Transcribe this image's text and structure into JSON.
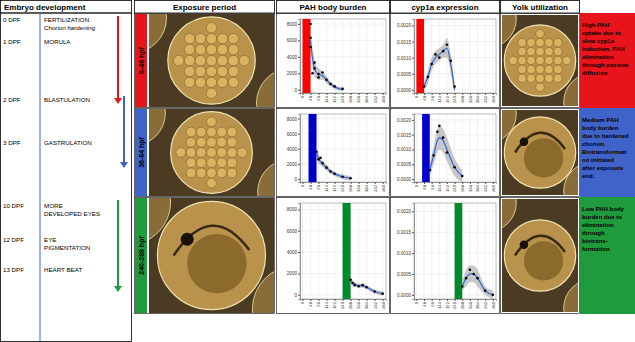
{
  "headers": [
    "Embryo development",
    "Exposure period",
    "PAH body burden",
    "cyp1a expression",
    "Yolk utilization"
  ],
  "timeline": [
    {
      "day": "0 DPF",
      "lines": [
        "FERTILIZATION",
        "Chorion hardening"
      ]
    },
    {
      "day": "1 DPF",
      "lines": [
        "MORULA"
      ]
    },
    {
      "day": "2 DPF",
      "lines": [
        "BLASTULATION"
      ]
    },
    {
      "day": "3 DPF",
      "lines": [
        "GASTRULATION"
      ]
    },
    {
      "day": "10 DPF",
      "lines": [
        "MORE",
        "DEVELOPED EYES"
      ]
    },
    {
      "day": "12 DPF",
      "lines": [
        "EYE",
        "PIGMENTATION"
      ]
    },
    {
      "day": "13 DPF",
      "lines": [
        "HEART BEAT"
      ]
    }
  ],
  "rows": [
    {
      "period": "0-48 hpf",
      "color": "#e8141b",
      "summary": [
        "High PAH",
        "uptake due to",
        "slow cyp1a",
        "induction. PAH",
        "elimination",
        "through passive",
        "diffusion"
      ]
    },
    {
      "period": "36-84 hpf",
      "color": "#3f63c8",
      "summary": [
        "Medium PAH",
        "body burden",
        "due to hardened",
        "chorion.",
        "Biotransformati",
        "on initiated",
        "after exposure",
        "end."
      ]
    },
    {
      "period": "240-288 hpf",
      "color": "#1f9a3c",
      "summary": [
        "Low PAH body",
        "burden due to",
        "elimination",
        "through",
        "biotrans-",
        "formation"
      ]
    }
  ],
  "chart_data": [
    {
      "type": "scatter",
      "color": "#ff0000",
      "exposure": [
        0,
        48
      ],
      "grid": true,
      "xlim": [
        -15,
        500
      ],
      "ylim": [
        -400,
        8600
      ],
      "xticks": [
        0,
        48,
        96,
        144,
        192,
        240,
        288,
        336,
        384,
        432,
        480
      ],
      "yticks": [
        0,
        2000,
        4000,
        6000,
        8000
      ],
      "series": [
        {
          "type": "line",
          "color": "#2a5fd8",
          "x": [
            48,
            60,
            72,
            84,
            96,
            108,
            120,
            144,
            168,
            192,
            216,
            240
          ],
          "values": [
            6000,
            3800,
            2600,
            2100,
            1900,
            1800,
            1700,
            1200,
            700,
            350,
            150,
            50
          ],
          "lower": [
            4800,
            2600,
            1600,
            1300,
            1200,
            1200,
            1200,
            800,
            400,
            100,
            -100,
            -200
          ],
          "upper": [
            7200,
            5000,
            3600,
            2900,
            2600,
            2400,
            2200,
            1600,
            1000,
            600,
            400,
            300
          ]
        },
        {
          "type": "scatter",
          "color": "#000000",
          "x": [
            48,
            48,
            48,
            60,
            72,
            72,
            96,
            96,
            120,
            144,
            168,
            192,
            240
          ],
          "values": [
            6300,
            8000,
            5200,
            2000,
            2600,
            3300,
            1500,
            1900,
            2100,
            1200,
            700,
            400,
            100
          ]
        }
      ]
    },
    {
      "type": "scatter",
      "color": "#ff0000",
      "exposure": [
        0,
        48
      ],
      "grid": true,
      "xlim": [
        -15,
        500
      ],
      "ylim": [
        -0.0001,
        0.0022
      ],
      "xticks": [
        0,
        48,
        96,
        144,
        192,
        240,
        288,
        336,
        384,
        432,
        480
      ],
      "yticks": [
        {
          "value": 0,
          "label": "0.0000"
        },
        {
          "value": 0.0005,
          "label": "0.0005"
        },
        {
          "value": 0.001,
          "label": "0.0010"
        },
        {
          "value": 0.0015,
          "label": "0.0015"
        },
        {
          "value": 0.002,
          "label": "0.0020"
        }
      ],
      "series": [
        {
          "type": "line",
          "color": "#2a5fd8",
          "x": [
            48,
            72,
            96,
            120,
            144,
            168,
            192,
            216,
            240
          ],
          "values": [
            0.0001,
            0.0004,
            0.0008,
            0.001,
            0.0011,
            0.0012,
            0.0013,
            0.0008,
            0.0
          ],
          "lower": [
            0.0,
            0.0002,
            0.0006,
            0.0008,
            0.0009,
            0.001,
            0.001,
            0.0005,
            -0.0002
          ],
          "upper": [
            0.0002,
            0.0006,
            0.001,
            0.0012,
            0.0013,
            0.0014,
            0.0016,
            0.0011,
            0.0002
          ]
        },
        {
          "type": "scatter",
          "color": "#000000",
          "x": [
            48,
            72,
            96,
            120,
            144,
            168,
            192,
            216,
            240
          ],
          "values": [
            0.0001,
            0.0004,
            0.0008,
            0.0011,
            0.001,
            0.0012,
            0.0014,
            0.0009,
            0.0001
          ]
        }
      ]
    },
    {
      "type": "scatter",
      "color": "#0000cc",
      "exposure": [
        36,
        84
      ],
      "grid": true,
      "xlim": [
        -15,
        500
      ],
      "ylim": [
        -400,
        8600
      ],
      "xticks": [
        0,
        48,
        96,
        144,
        192,
        240,
        288,
        336,
        384,
        432,
        480
      ],
      "yticks": [
        0,
        2000,
        4000,
        6000,
        8000
      ],
      "series": [
        {
          "type": "line",
          "color": "#2a5fd8",
          "x": [
            84,
            96,
            120,
            144,
            168,
            192,
            240,
            288
          ],
          "values": [
            3400,
            2700,
            2000,
            1500,
            1000,
            700,
            300,
            100
          ],
          "lower": [
            2600,
            2100,
            1600,
            1100,
            700,
            400,
            0,
            -200
          ],
          "upper": [
            4200,
            3300,
            2400,
            1900,
            1300,
            1000,
            600,
            400
          ]
        },
        {
          "type": "scatter",
          "color": "#000000",
          "x": [
            84,
            96,
            108,
            120,
            144,
            168,
            192,
            240,
            288
          ],
          "values": [
            3600,
            2600,
            2800,
            2100,
            1500,
            1000,
            700,
            300,
            100
          ]
        }
      ]
    },
    {
      "type": "scatter",
      "color": "#0000cc",
      "exposure": [
        36,
        84
      ],
      "grid": true,
      "xlim": [
        -15,
        500
      ],
      "ylim": [
        -0.0001,
        0.0022
      ],
      "xticks": [
        0,
        48,
        96,
        144,
        192,
        240,
        288,
        336,
        384,
        432,
        480
      ],
      "yticks": [
        {
          "value": 0,
          "label": "0.0000"
        },
        {
          "value": 0.0005,
          "label": "0.0005"
        },
        {
          "value": 0.001,
          "label": "0.0010"
        },
        {
          "value": 0.0015,
          "label": "0.0015"
        },
        {
          "value": 0.002,
          "label": "0.0020"
        }
      ],
      "series": [
        {
          "type": "line",
          "color": "#2a5fd8",
          "x": [
            84,
            108,
            132,
            144,
            168,
            192,
            240,
            288
          ],
          "values": [
            0.0003,
            0.0008,
            0.0013,
            0.0014,
            0.0013,
            0.001,
            0.0004,
            0.0001
          ],
          "lower": [
            0.0001,
            0.0005,
            0.0009,
            0.001,
            0.0009,
            0.0006,
            0.0001,
            -0.0001
          ],
          "upper": [
            0.0005,
            0.0011,
            0.0017,
            0.0018,
            0.0017,
            0.0014,
            0.0007,
            0.0003
          ]
        },
        {
          "type": "scatter",
          "color": "#000000",
          "x": [
            84,
            108,
            132,
            144,
            168,
            192,
            240,
            288
          ],
          "values": [
            0.0003,
            0.0008,
            0.0016,
            0.0018,
            0.0014,
            0.0009,
            0.0004,
            0.0001
          ]
        }
      ]
    },
    {
      "type": "scatter",
      "color": "#008a2e",
      "exposure": [
        240,
        288
      ],
      "grid": true,
      "xlim": [
        -15,
        500
      ],
      "ylim": [
        -400,
        8600
      ],
      "xticks": [
        0,
        48,
        96,
        144,
        192,
        240,
        288,
        336,
        384,
        432,
        480
      ],
      "yticks": [
        0,
        2000,
        4000,
        6000,
        8000
      ],
      "series": [
        {
          "type": "line",
          "color": "#2a5fd8",
          "x": [
            288,
            312,
            336,
            360,
            384,
            432,
            480
          ],
          "values": [
            1300,
            1000,
            850,
            850,
            700,
            300,
            100
          ],
          "lower": [
            1000,
            800,
            650,
            650,
            500,
            100,
            -100
          ],
          "upper": [
            1600,
            1200,
            1050,
            1050,
            900,
            500,
            300
          ]
        },
        {
          "type": "scatter",
          "color": "#000000",
          "x": [
            288,
            300,
            312,
            336,
            360,
            384,
            432,
            480
          ],
          "values": [
            1400,
            1100,
            900,
            800,
            900,
            700,
            300,
            100
          ]
        }
      ]
    },
    {
      "type": "scatter",
      "color": "#008a2e",
      "exposure": [
        240,
        288
      ],
      "grid": true,
      "xlim": [
        -15,
        500
      ],
      "ylim": [
        -0.0001,
        0.0022
      ],
      "xticks": [
        0,
        48,
        96,
        144,
        192,
        240,
        288,
        336,
        384,
        432,
        480
      ],
      "yticks": [
        {
          "value": 0,
          "label": "0.0000"
        },
        {
          "value": 0.0005,
          "label": "0.0005"
        },
        {
          "value": 0.001,
          "label": "0.0010"
        },
        {
          "value": 0.0015,
          "label": "0.0015"
        },
        {
          "value": 0.002,
          "label": "0.0020"
        }
      ],
      "series": [
        {
          "type": "line",
          "color": "#2a5fd8",
          "x": [
            288,
            312,
            336,
            360,
            384,
            432,
            480
          ],
          "values": [
            0.0002,
            0.0004,
            0.0005,
            0.0005,
            0.0004,
            0.0001,
            0.0
          ],
          "lower": [
            0.0001,
            0.0002,
            0.0003,
            0.0003,
            0.0002,
            0.0,
            -0.0001
          ],
          "upper": [
            0.0003,
            0.0006,
            0.0007,
            0.0007,
            0.0006,
            0.0002,
            0.0001
          ]
        },
        {
          "type": "scatter",
          "color": "#000000",
          "x": [
            288,
            312,
            336,
            360,
            384,
            432,
            480
          ],
          "values": [
            0.0002,
            0.0004,
            0.0006,
            0.0005,
            0.0004,
            0.0001,
            0.0
          ]
        }
      ]
    }
  ]
}
